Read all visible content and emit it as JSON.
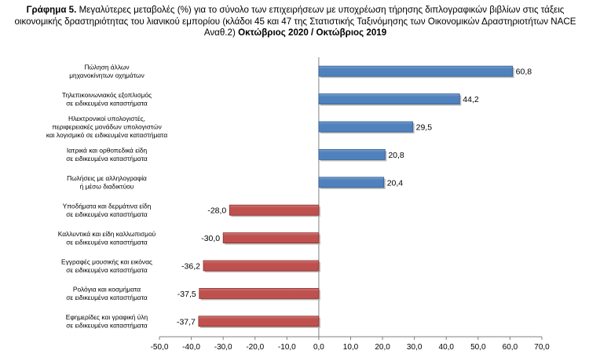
{
  "title": {
    "label": "Γράφημα 5.",
    "text": "Μεγαλύτερες μεταβολές (%) για το σύνολο των επιχειρήσεων με υποχρέωση τήρησης διπλογραφικών βιβλίων στις τάξεις οικονομικής δραστηριότητας του λιανικού εμπορίου (κλάδοι 45 και 47 της Στατιστικής Ταξινόμησης των Οικονομικών Δραστηριοτήτων NACE Αναθ.2)",
    "period": "Οκτώβριος 2020 / Οκτώβριος 2019"
  },
  "colors": {
    "positive": "#4F81BD",
    "negative": "#C0504D",
    "axis": "#808080"
  },
  "chart_data": {
    "type": "bar",
    "orientation": "horizontal",
    "categories": [
      [
        "Πώληση άλλων",
        "μηχανοκίνητων οχημάτων"
      ],
      [
        "Τηλεπικοινωνιακός εξοπλισμός",
        "σε ειδικευμένα καταστήματα"
      ],
      [
        "Ηλεκτρονικοί υπολογιστές,",
        "περιφερειακές μονάδων υπολογιστών",
        "και λογισμικό σε ειδικευμένα καταστήματα"
      ],
      [
        "Ιατρικά και ορθοπεδικά είδη",
        "σε ειδικευμένα καταστήματα"
      ],
      [
        "Πωλήσεις με αλληλογραφία",
        "ή μέσω διαδικτύου"
      ],
      [
        "Υποδήματα και δερμάτινα είδη",
        "σε ειδικευμένα καταστήματα"
      ],
      [
        "Καλλυντικά και είδη καλλωπισμού",
        "σε ειδικευμένα καταστήματα"
      ],
      [
        "Εγγραφές μουσικής και εικόνας",
        "σε ειδικευμένα καταστήματα"
      ],
      [
        "Ρολόγια και κοσμήματα",
        "σε ειδικευμένα καταστήματα"
      ],
      [
        "Εφημερίδες και γραφική ύλη",
        "σε ειδικευμένα καταστήματα"
      ]
    ],
    "values": [
      60.8,
      44.2,
      29.5,
      20.8,
      20.4,
      -28.0,
      -30.0,
      -36.2,
      -37.5,
      -37.7
    ],
    "value_labels": [
      "60,8",
      "44,2",
      "29,5",
      "20,8",
      "20,4",
      "-28,0",
      "-30,0",
      "-36,2",
      "-37,5",
      "-37,7"
    ],
    "xlim": [
      -50,
      70
    ],
    "ticks": [
      "-50,0",
      "-40,0",
      "-30,0",
      "-20,0",
      "-10,0",
      "0,0",
      "10,0",
      "20,0",
      "30,0",
      "40,0",
      "50,0",
      "60,0",
      "70,0"
    ],
    "tick_values": [
      -50,
      -40,
      -30,
      -20,
      -10,
      0,
      10,
      20,
      30,
      40,
      50,
      60,
      70
    ],
    "grid": false,
    "legend": "none"
  }
}
